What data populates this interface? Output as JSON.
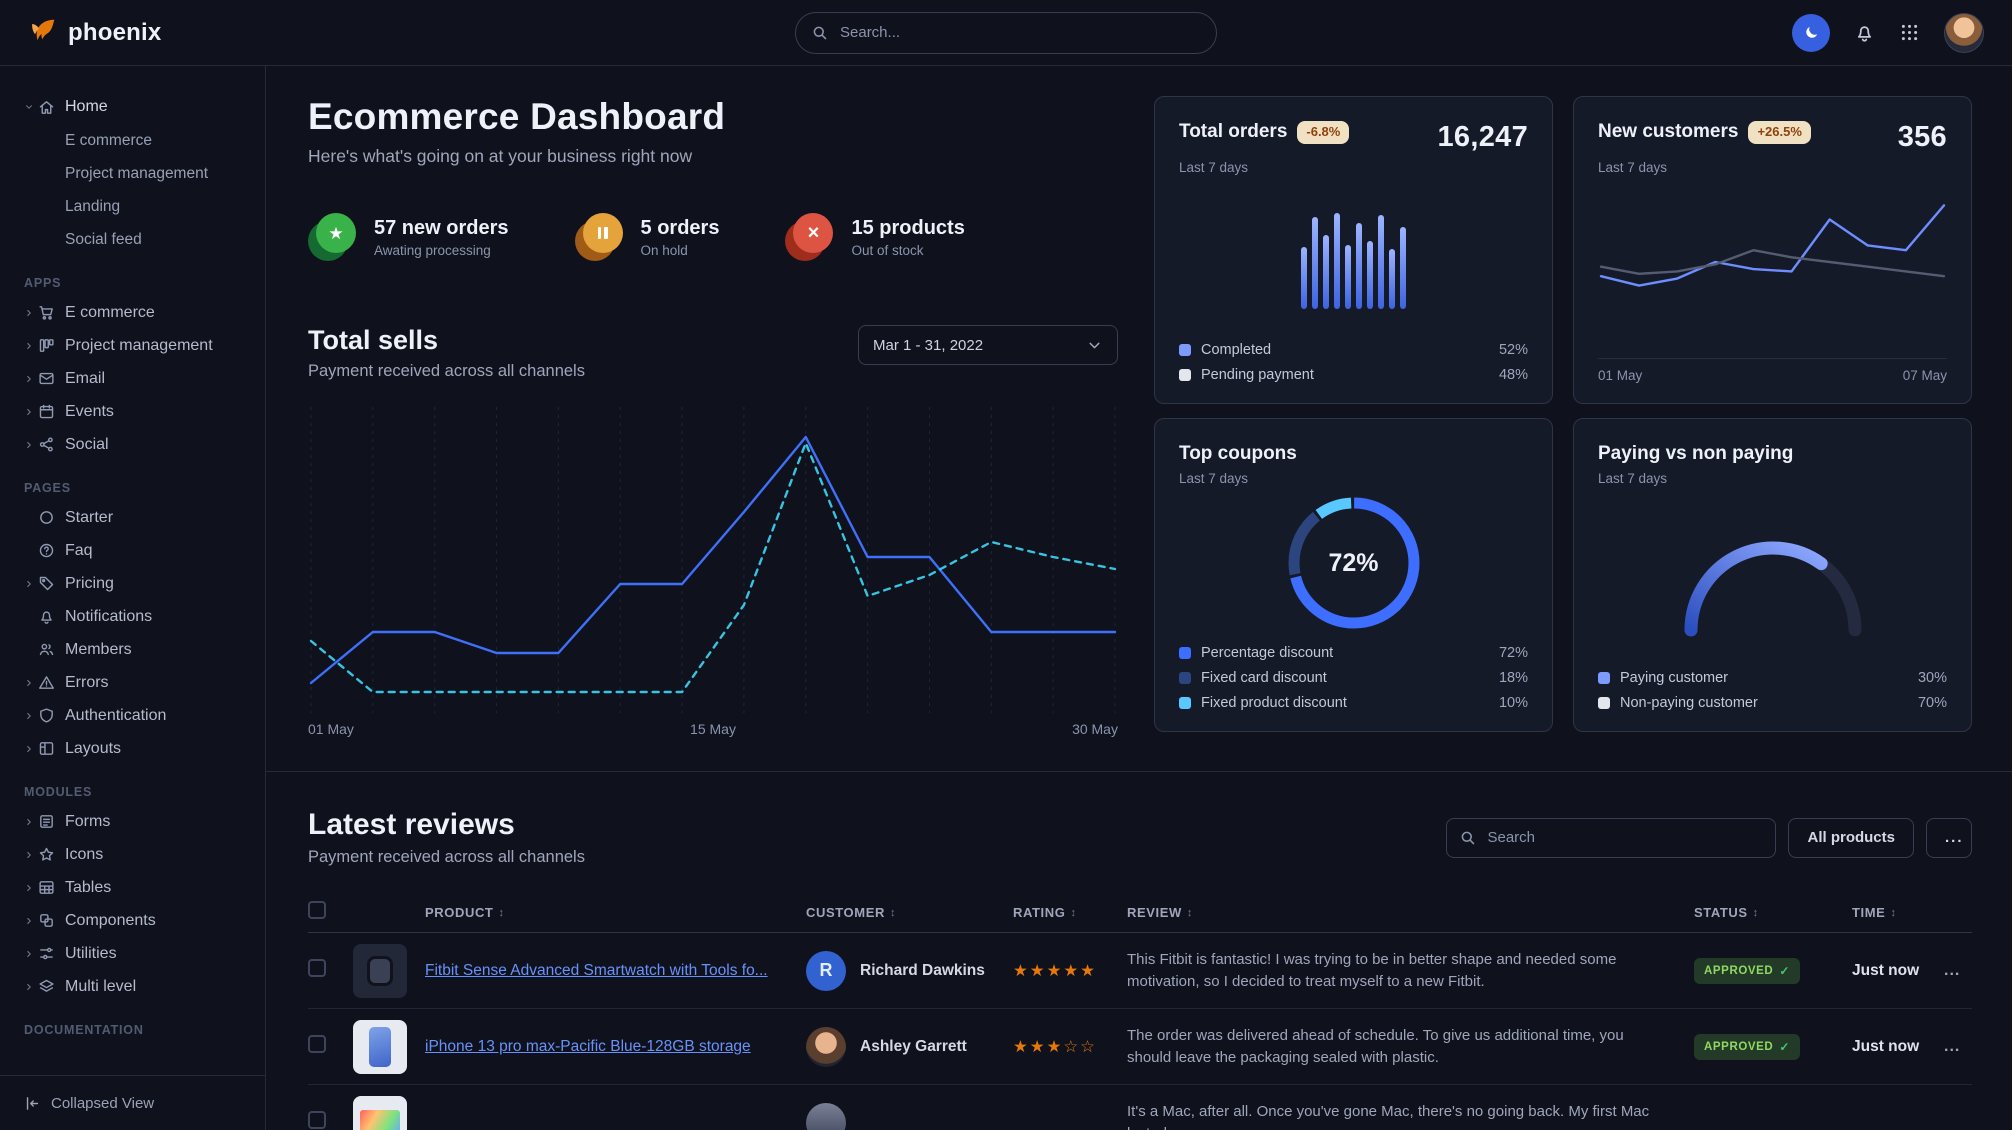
{
  "navbar": {
    "brand": "phoenix",
    "search": {
      "placeholder": "Search..."
    }
  },
  "sidebar": {
    "home": {
      "label": "Home",
      "children": [
        {
          "label": "E commerce"
        },
        {
          "label": "Project management"
        },
        {
          "label": "Landing"
        },
        {
          "label": "Social feed"
        }
      ]
    },
    "sections": [
      {
        "title": "APPS",
        "items": [
          {
            "label": "E commerce",
            "icon": "cart-icon",
            "caret": true
          },
          {
            "label": "Project management",
            "icon": "kanban-icon",
            "caret": true
          },
          {
            "label": "Email",
            "icon": "envelope-icon",
            "caret": true
          },
          {
            "label": "Events",
            "icon": "calendar-icon",
            "caret": true
          },
          {
            "label": "Social",
            "icon": "share-nodes-icon",
            "caret": true
          }
        ]
      },
      {
        "title": "PAGES",
        "items": [
          {
            "label": "Starter",
            "icon": "circle-icon",
            "caret": false
          },
          {
            "label": "Faq",
            "icon": "question-circle-icon",
            "caret": false
          },
          {
            "label": "Pricing",
            "icon": "tag-icon",
            "caret": true
          },
          {
            "label": "Notifications",
            "icon": "bell-icon",
            "caret": false
          },
          {
            "label": "Members",
            "icon": "users-icon",
            "caret": false
          },
          {
            "label": "Errors",
            "icon": "warning-icon",
            "caret": true
          },
          {
            "label": "Authentication",
            "icon": "shield-icon",
            "caret": true
          },
          {
            "label": "Layouts",
            "icon": "layout-icon",
            "caret": true
          }
        ]
      },
      {
        "title": "MODULES",
        "items": [
          {
            "label": "Forms",
            "icon": "form-icon",
            "caret": true
          },
          {
            "label": "Icons",
            "icon": "star-icon",
            "caret": true
          },
          {
            "label": "Tables",
            "icon": "table-icon",
            "caret": true
          },
          {
            "label": "Components",
            "icon": "components-icon",
            "caret": true
          },
          {
            "label": "Utilities",
            "icon": "sliders-icon",
            "caret": true
          },
          {
            "label": "Multi level",
            "icon": "layers-icon",
            "caret": true
          }
        ]
      },
      {
        "title": "DOCUMENTATION",
        "items": []
      }
    ],
    "footer": {
      "label": "Collapsed View"
    }
  },
  "header": {
    "title": "Ecommerce Dashboard",
    "subtitle": "Here's what's going on at your business right now"
  },
  "stats": [
    {
      "value": "57 new orders",
      "caption": "Awating processing",
      "color": "#38b249"
    },
    {
      "value": "5 orders",
      "caption": "On hold",
      "color": "#e5a33b"
    },
    {
      "value": "15 products",
      "caption": "Out of stock",
      "color": "#dd5442"
    }
  ],
  "total_sells": {
    "title": "Total sells",
    "subtitle": "Payment received across all channels",
    "date_range": "Mar 1 - 31, 2022",
    "x_labels": {
      "start": "01 May",
      "mid": "15 May",
      "end": "30 May"
    }
  },
  "cards": {
    "total_orders": {
      "title": "Total orders",
      "badge": "-6.8%",
      "period": "Last 7 days",
      "value": "16,247",
      "legend": [
        {
          "label": "Completed",
          "value": "52%",
          "color": "#7d9bff"
        },
        {
          "label": "Pending payment",
          "value": "48%",
          "color": "#e3e6ed"
        }
      ]
    },
    "new_customers": {
      "title": "New customers",
      "badge": "+26.5%",
      "period": "Last 7 days",
      "value": "356",
      "x_labels": {
        "start": "01 May",
        "end": "07 May"
      }
    },
    "top_coupons": {
      "title": "Top coupons",
      "period": "Last 7 days",
      "center_value": "72%",
      "legend": [
        {
          "label": "Percentage discount",
          "value": "72%",
          "color": "#3d6eff"
        },
        {
          "label": "Fixed card discount",
          "value": "18%",
          "color": "#2c457f"
        },
        {
          "label": "Fixed product discount",
          "value": "10%",
          "color": "#58c8ff"
        }
      ]
    },
    "paying": {
      "title": "Paying vs non paying",
      "period": "Last 7 days",
      "legend": [
        {
          "label": "Paying customer",
          "value": "30%",
          "color": "#7d9bff"
        },
        {
          "label": "Non-paying customer",
          "value": "70%",
          "color": "#e3e6ed"
        }
      ]
    }
  },
  "reviews": {
    "title": "Latest reviews",
    "subtitle": "Payment received across all channels",
    "search_placeholder": "Search",
    "filter_label": "All products",
    "more_label": "...",
    "columns": [
      "PRODUCT",
      "CUSTOMER",
      "RATING",
      "REVIEW",
      "STATUS",
      "TIME"
    ],
    "rows": [
      {
        "product": "Fitbit Sense Advanced Smartwatch with Tools fo...",
        "customer": "Richard Dawkins",
        "avatar_initial": "R",
        "rating": 5,
        "stars": "★★★★★",
        "review": "This Fitbit is fantastic! I was trying to be in better shape and needed some motivation, so I decided to treat myself to a new Fitbit.",
        "status": "APPROVED",
        "status_check": "✓",
        "time": "Just now",
        "more": "..."
      },
      {
        "product": "iPhone 13 pro max-Pacific Blue-128GB storage",
        "customer": "Ashley Garrett",
        "rating": 3,
        "stars": "★★★☆☆",
        "review": "The order was delivered ahead of schedule. To give us additional time, you should leave the packaging sealed with plastic.",
        "status": "APPROVED",
        "status_check": "✓",
        "time": "Just now",
        "more": "..."
      },
      {
        "product": "",
        "customer": "",
        "rating": 0,
        "stars": "",
        "review": "It's a Mac, after all. Once you've gone Mac, there's no going back. My first Mac lasted...",
        "status": "",
        "status_check": "",
        "time": "",
        "more": ""
      }
    ]
  },
  "chart_data": [
    {
      "id": "total-sells",
      "type": "line",
      "title": "Total sells",
      "x_labels": [
        "01 May",
        "15 May",
        "30 May"
      ],
      "ylim": [
        0,
        100
      ],
      "grid": "vertical-dashed",
      "series": [
        {
          "name": "payments-current",
          "color": "#3f70fa",
          "dash": false,
          "values": [
            9,
            26,
            26,
            19,
            19,
            42,
            42,
            66,
            91,
            51,
            51,
            26,
            26,
            26
          ]
        },
        {
          "name": "payments-comparison",
          "color": "#38c3e0",
          "dash": true,
          "values": [
            23,
            6,
            6,
            6,
            6,
            6,
            6,
            35,
            89,
            38,
            45,
            56,
            51,
            47
          ]
        }
      ]
    },
    {
      "id": "total-orders",
      "type": "bar",
      "values": [
        62,
        92,
        74,
        96,
        64,
        86,
        68,
        94,
        60,
        82
      ],
      "bar_color_top": "#9db4ff",
      "bar_color_bottom": "#3d63e0"
    },
    {
      "id": "new-customers",
      "type": "line",
      "x_labels": [
        "01 May",
        "07 May"
      ],
      "ylim": [
        0,
        100
      ],
      "series": [
        {
          "name": "current",
          "color": "#6e8eff",
          "dash": false,
          "values": [
            38,
            30,
            36,
            50,
            44,
            42,
            86,
            64,
            60,
            98
          ]
        },
        {
          "name": "previous",
          "color": "#555c72",
          "dash": false,
          "values": [
            46,
            40,
            42,
            48,
            60,
            54,
            50,
            46,
            42,
            38
          ]
        }
      ]
    },
    {
      "id": "top-coupons",
      "type": "donut",
      "center_label": "72%",
      "segments": [
        {
          "label": "Percentage discount",
          "value": 72,
          "color": "#3d6eff"
        },
        {
          "label": "Fixed card discount",
          "value": 18,
          "color": "#2c457f"
        },
        {
          "label": "Fixed product discount",
          "value": 10,
          "color": "#58c8ff"
        }
      ]
    },
    {
      "id": "paying-gauge",
      "type": "gauge",
      "paying_percent": 30,
      "non_paying_percent": 70,
      "arc_percent": 70,
      "arc_color_start": "#2c4fc0",
      "arc_color_end": "#8fa9ff",
      "track_color": "#242b40"
    }
  ]
}
